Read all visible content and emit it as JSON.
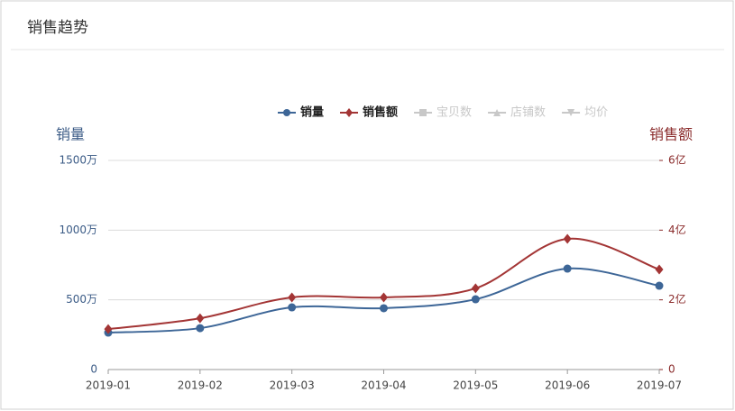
{
  "header": {
    "title": "销售趋势"
  },
  "chart_data": {
    "type": "line",
    "y_axis_label": "销量",
    "y2_axis_label": "销售额",
    "categories": [
      "2019-01",
      "2019-02",
      "2019-03",
      "2019-04",
      "2019-05",
      "2019-06",
      "2019-07"
    ],
    "series": [
      {
        "name": "销量",
        "color": "#3d6697",
        "marker": "circle",
        "values": [
          265,
          297,
          446,
          440,
          504,
          724,
          601
        ]
      },
      {
        "name": "销售额",
        "color": "#a33535",
        "marker": "diamond",
        "axis": "y2",
        "values": [
          1.16,
          1.47,
          2.07,
          2.07,
          2.33,
          3.75,
          2.87
        ]
      }
    ],
    "inactive_series": [
      {
        "name": "宝贝数",
        "marker": "rect"
      },
      {
        "name": "店铺数",
        "marker": "triangle"
      },
      {
        "name": "均价",
        "marker": "triangle-down"
      }
    ],
    "inactive_color": "#c8c8c8",
    "ylim": [
      0,
      1500
    ],
    "yticks": [
      0,
      {
        "value": 500,
        "label": "500万"
      },
      {
        "value": 1000,
        "label": "1000万"
      },
      {
        "value": 1500,
        "label": "1500万"
      }
    ],
    "y2lim": [
      0,
      6
    ],
    "y2ticks": [
      0,
      {
        "value": 2,
        "label": "2亿"
      },
      {
        "value": 4,
        "label": "4亿"
      },
      {
        "value": 6,
        "label": "6亿"
      }
    ],
    "grid": true
  }
}
